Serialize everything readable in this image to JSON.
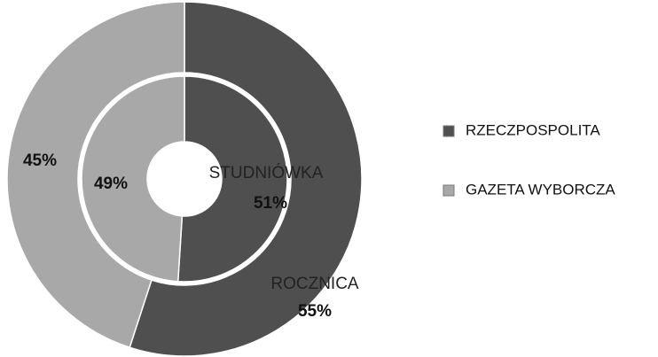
{
  "chart_data": {
    "type": "doughnut",
    "categories": [
      "STUDNIÓWKA",
      "ROCZNICA"
    ],
    "series": [
      {
        "name": "RZECZPOSPOLITA",
        "color": "#4f4f4f",
        "values": [
          51,
          55
        ],
        "value_labels": [
          "51%",
          "55%"
        ]
      },
      {
        "name": "GAZETA WYBORCZA",
        "color": "#a8a8a8",
        "values": [
          49,
          45
        ],
        "value_labels": [
          "49%",
          "45%"
        ]
      }
    ],
    "legend": "right"
  }
}
